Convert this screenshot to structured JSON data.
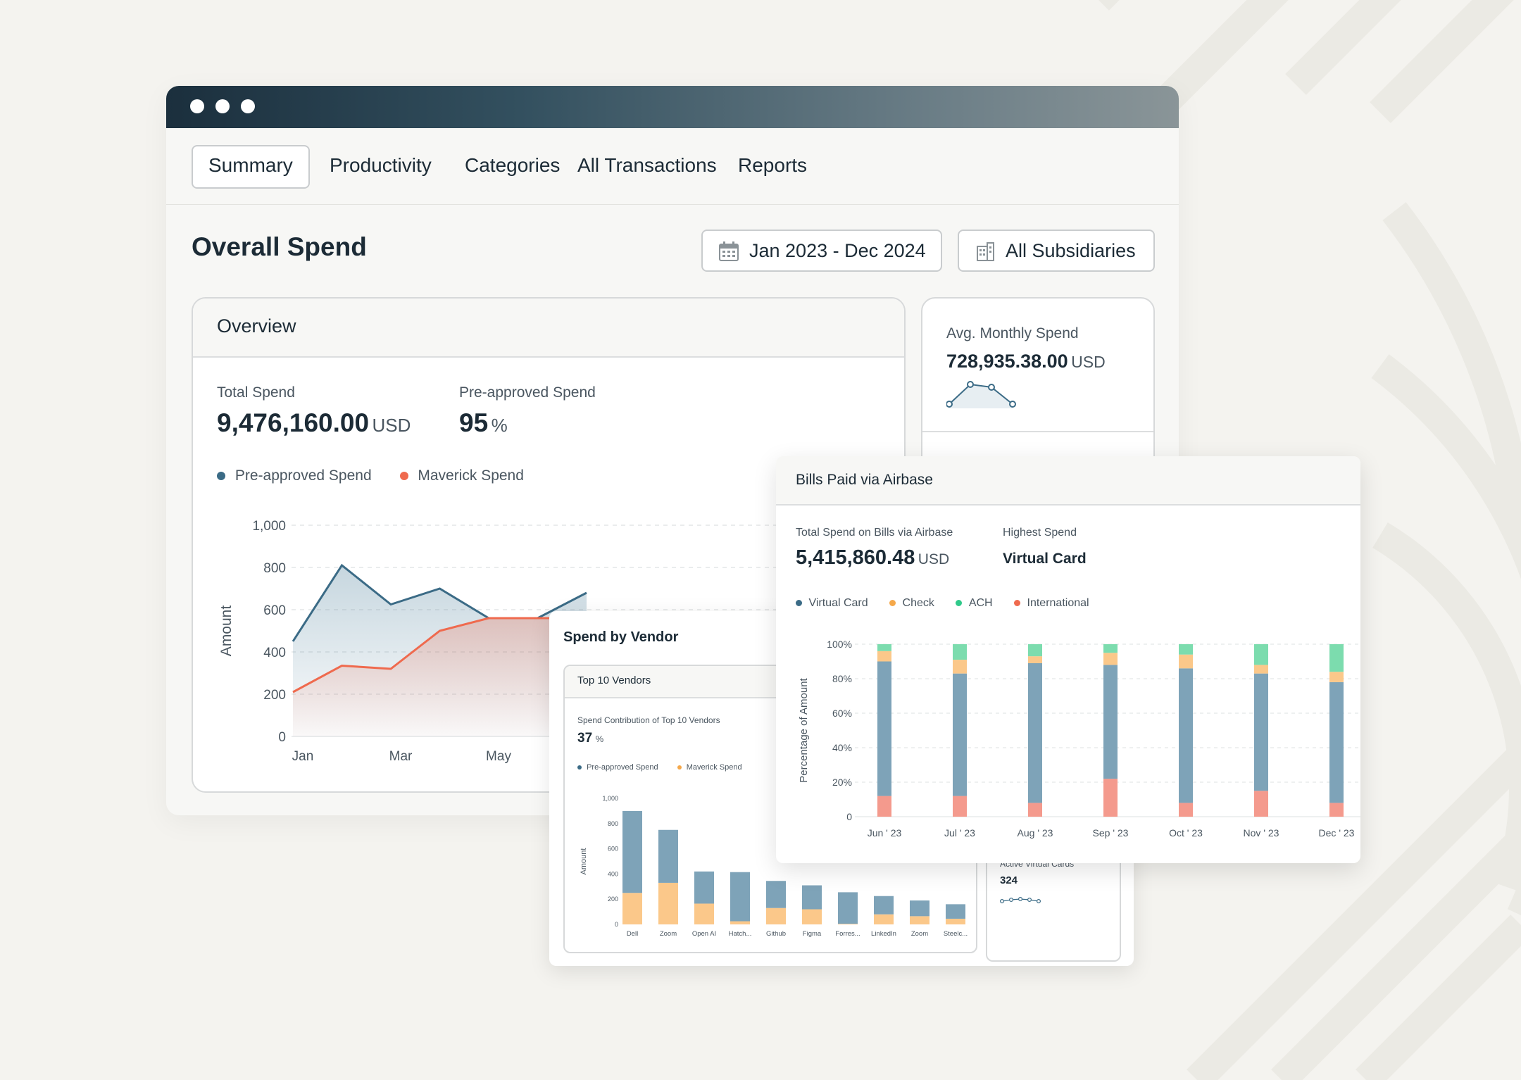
{
  "window": {
    "tabs": [
      "Summary",
      "Productivity",
      "Categories",
      "All Transactions",
      "Reports"
    ],
    "active_tab": "Summary",
    "page_title": "Overall Spend",
    "date_range": "Jan 2023 - Dec 2024",
    "subsidiary": "All Subsidiaries"
  },
  "overview": {
    "title": "Overview",
    "total_spend_label": "Total Spend",
    "total_spend_value": "9,476,160.00",
    "total_spend_unit": "USD",
    "preapproved_label": "Pre-approved Spend",
    "preapproved_value": "95",
    "preapproved_unit": "%",
    "legend": [
      "Pre-approved Spend",
      "Maverick Spend"
    ],
    "colors": {
      "preapproved": "#3b6b86",
      "maverick": "#ef6a4e"
    }
  },
  "avg_card": {
    "label": "Avg. Monthly Spend",
    "value": "728,935.38.00",
    "unit": "USD"
  },
  "vendor": {
    "title": "Spend by Vendor",
    "inner_title": "Top 10 Vendors",
    "contribution_label": "Spend Contribution of Top 10 Vendors",
    "contribution_value": "37",
    "contribution_unit": "%",
    "legend": [
      "Pre-approved Spend",
      "Maverick Spend"
    ],
    "active_cards_label": "Active Virtual Cards",
    "active_cards_value": "324"
  },
  "bills": {
    "title": "Bills Paid via Airbase",
    "total_label": "Total Spend on Bills via Airbase",
    "total_value": "5,415,860.48",
    "total_unit": "USD",
    "highest_label": "Highest Spend",
    "highest_value": "Virtual Card",
    "legend": [
      "Virtual Card",
      "Check",
      "ACH",
      "International"
    ],
    "colors": {
      "virtual_card": "#3b6b86",
      "check": "#f5a84a",
      "ach": "#2fc98a",
      "international": "#ef6a4e"
    }
  },
  "chart_data": [
    {
      "type": "area",
      "ylabel": "Amount",
      "ylim": [
        0,
        1000
      ],
      "yticks": [
        "0",
        "200",
        "400",
        "600",
        "800",
        "1,000"
      ],
      "x_ticks": [
        "Jan",
        "Mar",
        "May"
      ],
      "series": [
        {
          "name": "Pre-approved Spend",
          "values": [
            450,
            810,
            625,
            700,
            560,
            560,
            680
          ]
        },
        {
          "name": "Maverick Spend",
          "values": [
            210,
            335,
            320,
            500,
            560,
            560,
            560
          ]
        }
      ]
    },
    {
      "type": "bar",
      "ylabel": "Amount",
      "ylim": [
        0,
        1000
      ],
      "yticks": [
        "0",
        "200",
        "400",
        "600",
        "800",
        "1,000"
      ],
      "categories": [
        "Dell",
        "Zoom",
        "Open AI",
        "Hatch...",
        "Github",
        "Figma",
        "Forres...",
        "LinkedIn",
        "Zoom",
        "Steelc..."
      ],
      "series": [
        {
          "name": "Pre-approved Spend",
          "values": [
            650,
            420,
            255,
            390,
            215,
            190,
            250,
            145,
            125,
            115
          ]
        },
        {
          "name": "Maverick Spend",
          "values": [
            250,
            330,
            165,
            25,
            130,
            120,
            5,
            80,
            65,
            45
          ]
        }
      ]
    },
    {
      "type": "bar",
      "stacked": true,
      "ylabel": "Percentage of Amount",
      "ylim": [
        0,
        100
      ],
      "yticks": [
        "0",
        "20%",
        "40%",
        "60%",
        "80%",
        "100%"
      ],
      "categories": [
        "Jun ' 23",
        "Jul ' 23",
        "Aug ' 23",
        "Sep ' 23",
        "Oct ' 23",
        "Nov ' 23",
        "Dec ' 23"
      ],
      "series": [
        {
          "name": "International",
          "values": [
            12,
            12,
            8,
            22,
            8,
            15,
            8
          ]
        },
        {
          "name": "Virtual Card",
          "values": [
            78,
            71,
            81,
            66,
            78,
            68,
            70
          ]
        },
        {
          "name": "Check",
          "values": [
            6,
            8,
            4,
            7,
            8,
            5,
            6
          ]
        },
        {
          "name": "ACH",
          "values": [
            4,
            9,
            7,
            5,
            6,
            12,
            16
          ]
        }
      ]
    }
  ]
}
